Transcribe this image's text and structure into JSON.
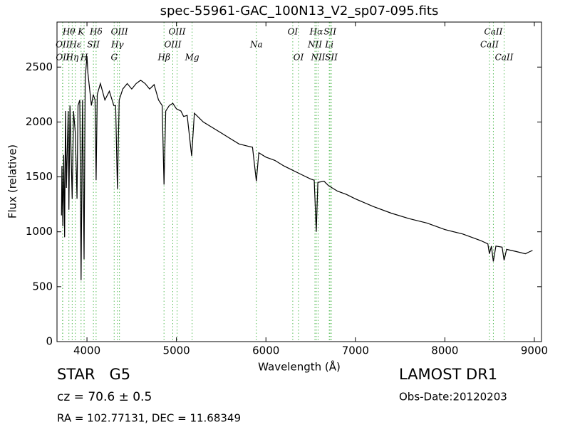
{
  "chart_data": {
    "type": "line",
    "title": "spec-55961-GAC_100N13_V2_sp07-095.fits",
    "xlabel": "Wavelength (Å)",
    "ylabel": "Flux (relative)",
    "xlim": [
      3665,
      9080
    ],
    "ylim": [
      0,
      2910
    ],
    "xticks": [
      4000,
      5000,
      6000,
      7000,
      8000,
      9000
    ],
    "yticks": [
      0,
      500,
      1000,
      1500,
      2000,
      2500
    ],
    "line_color": "#55bb55",
    "x": [
      3715,
      3720,
      3730,
      3740,
      3750,
      3760,
      3770,
      3790,
      3798,
      3810,
      3835,
      3850,
      3870,
      3889,
      3900,
      3920,
      3934,
      3950,
      3968,
      3980,
      4000,
      4010,
      4030,
      4050,
      4070,
      4090,
      4102,
      4115,
      4150,
      4200,
      4250,
      4300,
      4320,
      4340,
      4360,
      4400,
      4450,
      4500,
      4550,
      4600,
      4650,
      4700,
      4750,
      4800,
      4840,
      4861,
      4880,
      4920,
      4960,
      5000,
      5050,
      5080,
      5120,
      5170,
      5200,
      5300,
      5400,
      5500,
      5600,
      5700,
      5800,
      5850,
      5893,
      5920,
      6000,
      6100,
      6200,
      6300,
      6400,
      6500,
      6540,
      6563,
      6580,
      6650,
      6700,
      6800,
      6900,
      7000,
      7200,
      7400,
      7600,
      7800,
      8000,
      8200,
      8400,
      8480,
      8498,
      8520,
      8542,
      8570,
      8640,
      8662,
      8690,
      8800,
      8900,
      8950,
      8980
    ],
    "series": [
      {
        "color": "#000000",
        "values": [
          1150,
          1600,
          1050,
          1700,
          950,
          2100,
          1400,
          2100,
          1200,
          2150,
          1300,
          2100,
          1900,
          1300,
          2150,
          2200,
          560,
          2200,
          750,
          2400,
          2600,
          2450,
          2300,
          2150,
          2250,
          2200,
          1470,
          2250,
          2350,
          2200,
          2280,
          2150,
          2150,
          1390,
          2200,
          2300,
          2350,
          2300,
          2350,
          2380,
          2350,
          2300,
          2340,
          2200,
          2150,
          1430,
          2100,
          2150,
          2170,
          2120,
          2100,
          2050,
          2060,
          1690,
          2080,
          2000,
          1950,
          1900,
          1850,
          1800,
          1780,
          1770,
          1460,
          1720,
          1680,
          1650,
          1600,
          1560,
          1520,
          1480,
          1470,
          1000,
          1450,
          1460,
          1420,
          1370,
          1340,
          1300,
          1230,
          1170,
          1120,
          1080,
          1020,
          980,
          920,
          890,
          800,
          870,
          730,
          870,
          860,
          740,
          840,
          820,
          800,
          820,
          830
        ]
      }
    ],
    "annotations": [
      [
        {
          "label": "Hθ",
          "x": 3798
        },
        {
          "label": "K",
          "x": 3934
        },
        {
          "label": "Hδ",
          "x": 4102
        },
        {
          "label": "OIII",
          "x": 4363
        },
        {
          "label": "OIII",
          "x": 5007
        },
        {
          "label": "OI",
          "x": 6300
        },
        {
          "label": "Hα",
          "x": 6563
        },
        {
          "label": "SII",
          "x": 6716
        },
        {
          "label": "CaII",
          "x": 8542
        }
      ],
      [
        {
          "label": "OII",
          "x": 3727
        },
        {
          "label": "Hε",
          "x": 3870
        },
        {
          "label": "SII",
          "x": 4072
        },
        {
          "label": "Hγ",
          "x": 4340
        },
        {
          "label": "OIII",
          "x": 4959
        },
        {
          "label": "Na",
          "x": 5893
        },
        {
          "label": "NII",
          "x": 6548
        },
        {
          "label": "Li",
          "x": 6708
        },
        {
          "label": "CaII",
          "x": 8498
        }
      ],
      [
        {
          "label": "OII",
          "x": 3729
        },
        {
          "label": "Hη",
          "x": 3835
        },
        {
          "label": "H",
          "x": 3968
        },
        {
          "label": "G",
          "x": 4304
        },
        {
          "label": "Hβ",
          "x": 4861
        },
        {
          "label": "Mg",
          "x": 5175
        },
        {
          "label": "OI",
          "x": 6364
        },
        {
          "label": "NII",
          "x": 6583
        },
        {
          "label": "SII",
          "x": 6731
        },
        {
          "label": "CaII",
          "x": 8662
        }
      ]
    ]
  },
  "info": {
    "object": "STAR   G5",
    "cz": "cz = 70.6 ± 0.5",
    "coords": "RA = 102.77131, DEC = 11.68349",
    "survey": "LAMOST DR1",
    "date": "Obs-Date:20120203"
  }
}
